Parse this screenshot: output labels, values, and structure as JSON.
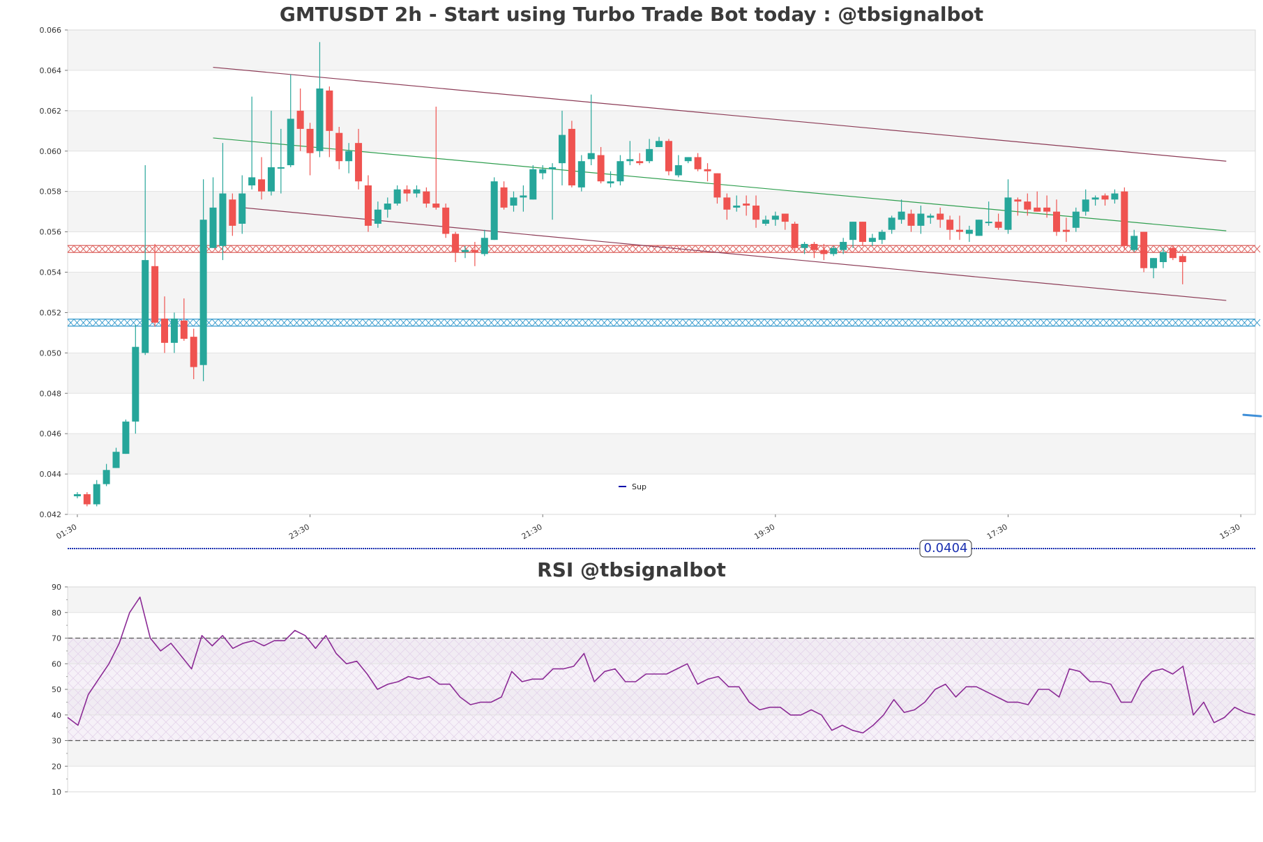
{
  "chart_data": [
    {
      "type": "candlestick",
      "title": "GMTUSDT 2h - Start using Turbo Trade Bot today : @tbsignalbot",
      "ylim": [
        0.042,
        0.066
      ],
      "y_ticks": [
        "0.042",
        "0.044",
        "0.046",
        "0.048",
        "0.050",
        "0.052",
        "0.054",
        "0.056",
        "0.058",
        "0.060",
        "0.062",
        "0.064",
        "0.066"
      ],
      "x_ticks": [
        "01:30",
        "23:30",
        "21:30",
        "19:30",
        "17:30",
        "15:30"
      ],
      "x_tick_positions": [
        0,
        24,
        48,
        72,
        96,
        120
      ],
      "x_range": [
        -1,
        121.5
      ],
      "grid": "horizontal bands",
      "legend": {
        "location": "bottom-center",
        "entries": [
          {
            "label": "Sup",
            "color": "#0000aa"
          }
        ]
      },
      "colors": {
        "up": "#26a69a",
        "down": "#ef5350"
      },
      "candles": [
        [
          0.0429,
          0.0431,
          0.0428,
          0.043
        ],
        [
          0.043,
          0.0431,
          0.0424,
          0.0425
        ],
        [
          0.0425,
          0.0437,
          0.0424,
          0.0435
        ],
        [
          0.0435,
          0.0445,
          0.0434,
          0.0442
        ],
        [
          0.0443,
          0.0453,
          0.0443,
          0.0451
        ],
        [
          0.045,
          0.0467,
          0.045,
          0.0466
        ],
        [
          0.0466,
          0.0514,
          0.046,
          0.0503
        ],
        [
          0.05,
          0.0593,
          0.0499,
          0.0546
        ],
        [
          0.0543,
          0.0554,
          0.0513,
          0.0515
        ],
        [
          0.0517,
          0.0528,
          0.05,
          0.0505
        ],
        [
          0.0505,
          0.052,
          0.05,
          0.0517
        ],
        [
          0.0516,
          0.0527,
          0.0506,
          0.0507
        ],
        [
          0.0508,
          0.0512,
          0.0487,
          0.0493
        ],
        [
          0.0494,
          0.0586,
          0.0486,
          0.0566
        ],
        [
          0.0552,
          0.0587,
          0.0552,
          0.0572
        ],
        [
          0.0553,
          0.0604,
          0.0546,
          0.0579
        ],
        [
          0.0576,
          0.0579,
          0.0558,
          0.0563
        ],
        [
          0.0564,
          0.0588,
          0.0559,
          0.0579
        ],
        [
          0.0583,
          0.0627,
          0.0581,
          0.0587
        ],
        [
          0.0586,
          0.0597,
          0.0576,
          0.058
        ],
        [
          0.058,
          0.062,
          0.0578,
          0.0592
        ],
        [
          0.0592,
          0.0611,
          0.0579,
          0.0592
        ],
        [
          0.0593,
          0.0638,
          0.0592,
          0.0616
        ],
        [
          0.062,
          0.0631,
          0.06,
          0.0611
        ],
        [
          0.0611,
          0.0614,
          0.0588,
          0.0599
        ],
        [
          0.06,
          0.0654,
          0.0597,
          0.0631
        ],
        [
          0.063,
          0.0632,
          0.0597,
          0.061
        ],
        [
          0.0609,
          0.0612,
          0.0591,
          0.0595
        ],
        [
          0.0595,
          0.0604,
          0.0589,
          0.06
        ],
        [
          0.0604,
          0.0611,
          0.0581,
          0.0585
        ],
        [
          0.0583,
          0.0588,
          0.056,
          0.0563
        ],
        [
          0.0564,
          0.0575,
          0.0562,
          0.0571
        ],
        [
          0.0571,
          0.0577,
          0.0567,
          0.0574
        ],
        [
          0.0574,
          0.0583,
          0.0573,
          0.0581
        ],
        [
          0.0581,
          0.0583,
          0.0575,
          0.0579
        ],
        [
          0.0579,
          0.0583,
          0.0577,
          0.0581
        ],
        [
          0.058,
          0.0582,
          0.0572,
          0.0574
        ],
        [
          0.0574,
          0.0622,
          0.0571,
          0.0572
        ],
        [
          0.0572,
          0.0574,
          0.0557,
          0.0559
        ],
        [
          0.0559,
          0.056,
          0.0545,
          0.055
        ],
        [
          0.055,
          0.0553,
          0.0547,
          0.0551
        ],
        [
          0.0551,
          0.0555,
          0.0543,
          0.055
        ],
        [
          0.0549,
          0.0561,
          0.0548,
          0.0557
        ],
        [
          0.0556,
          0.0587,
          0.0556,
          0.0585
        ],
        [
          0.0582,
          0.0585,
          0.0571,
          0.0572
        ],
        [
          0.0573,
          0.058,
          0.057,
          0.0577
        ],
        [
          0.0577,
          0.0583,
          0.057,
          0.0578
        ],
        [
          0.0576,
          0.0593,
          0.0576,
          0.0591
        ],
        [
          0.0589,
          0.0593,
          0.0586,
          0.0591
        ],
        [
          0.0591,
          0.0594,
          0.0566,
          0.0592
        ],
        [
          0.0594,
          0.062,
          0.0583,
          0.0608
        ],
        [
          0.0611,
          0.0615,
          0.0582,
          0.0583
        ],
        [
          0.0582,
          0.0598,
          0.058,
          0.0595
        ],
        [
          0.0596,
          0.0628,
          0.0593,
          0.0599
        ],
        [
          0.0598,
          0.0602,
          0.0584,
          0.0585
        ],
        [
          0.0584,
          0.059,
          0.0582,
          0.0585
        ],
        [
          0.0585,
          0.0598,
          0.0583,
          0.0595
        ],
        [
          0.0595,
          0.0605,
          0.0593,
          0.0596
        ],
        [
          0.0595,
          0.0599,
          0.0593,
          0.0594
        ],
        [
          0.0595,
          0.0606,
          0.0594,
          0.0601
        ],
        [
          0.0602,
          0.0607,
          0.0602,
          0.0605
        ],
        [
          0.0605,
          0.0606,
          0.0588,
          0.059
        ],
        [
          0.0588,
          0.0598,
          0.0587,
          0.0593
        ],
        [
          0.0595,
          0.0597,
          0.0594,
          0.0597
        ],
        [
          0.0597,
          0.0599,
          0.059,
          0.0591
        ],
        [
          0.0591,
          0.0594,
          0.0585,
          0.059
        ],
        [
          0.0589,
          0.0589,
          0.0574,
          0.0577
        ],
        [
          0.0577,
          0.0579,
          0.0566,
          0.0571
        ],
        [
          0.0572,
          0.0578,
          0.057,
          0.0573
        ],
        [
          0.0574,
          0.0578,
          0.0568,
          0.0573
        ],
        [
          0.0573,
          0.0578,
          0.0562,
          0.0566
        ],
        [
          0.0564,
          0.0568,
          0.0563,
          0.0566
        ],
        [
          0.0566,
          0.057,
          0.0563,
          0.0568
        ],
        [
          0.0569,
          0.0569,
          0.0561,
          0.0565
        ],
        [
          0.0564,
          0.0565,
          0.055,
          0.0552
        ],
        [
          0.0552,
          0.0555,
          0.0549,
          0.0554
        ],
        [
          0.0554,
          0.0555,
          0.0547,
          0.0551
        ],
        [
          0.0551,
          0.0554,
          0.0546,
          0.0549
        ],
        [
          0.0549,
          0.0553,
          0.0548,
          0.0552
        ],
        [
          0.0551,
          0.0557,
          0.0549,
          0.0555
        ],
        [
          0.0556,
          0.0565,
          0.0552,
          0.0565
        ],
        [
          0.0565,
          0.0565,
          0.0553,
          0.0555
        ],
        [
          0.0555,
          0.0559,
          0.0553,
          0.0557
        ],
        [
          0.0556,
          0.0561,
          0.0554,
          0.056
        ],
        [
          0.0561,
          0.0568,
          0.0559,
          0.0567
        ],
        [
          0.0566,
          0.0576,
          0.0564,
          0.057
        ],
        [
          0.0569,
          0.0571,
          0.056,
          0.0563
        ],
        [
          0.0563,
          0.0573,
          0.0559,
          0.0569
        ],
        [
          0.0567,
          0.0569,
          0.0564,
          0.0568
        ],
        [
          0.0569,
          0.0572,
          0.0562,
          0.0566
        ],
        [
          0.0566,
          0.0568,
          0.0556,
          0.0561
        ],
        [
          0.0561,
          0.0568,
          0.0556,
          0.056
        ],
        [
          0.0559,
          0.0563,
          0.0555,
          0.0561
        ],
        [
          0.0558,
          0.0566,
          0.0558,
          0.0566
        ],
        [
          0.0565,
          0.0575,
          0.0563,
          0.0565
        ],
        [
          0.0565,
          0.0569,
          0.0561,
          0.0562
        ],
        [
          0.0561,
          0.0586,
          0.0559,
          0.0577
        ],
        [
          0.0576,
          0.0577,
          0.0568,
          0.0575
        ],
        [
          0.0575,
          0.0579,
          0.0568,
          0.0571
        ],
        [
          0.0572,
          0.058,
          0.057,
          0.057
        ],
        [
          0.0572,
          0.0578,
          0.0567,
          0.057
        ],
        [
          0.057,
          0.0576,
          0.0558,
          0.056
        ],
        [
          0.0561,
          0.0567,
          0.0555,
          0.056
        ],
        [
          0.0562,
          0.0572,
          0.056,
          0.057
        ],
        [
          0.057,
          0.0581,
          0.0568,
          0.0576
        ],
        [
          0.0576,
          0.0578,
          0.0573,
          0.0577
        ],
        [
          0.0578,
          0.0579,
          0.0573,
          0.0576
        ],
        [
          0.0576,
          0.0581,
          0.0574,
          0.0579
        ],
        [
          0.058,
          0.0582,
          0.0551,
          0.0553
        ],
        [
          0.0551,
          0.0561,
          0.055,
          0.0558
        ],
        [
          0.056,
          0.056,
          0.054,
          0.0542
        ],
        [
          0.0542,
          0.0547,
          0.0537,
          0.0547
        ],
        [
          0.0545,
          0.0552,
          0.0542,
          0.055
        ],
        [
          0.0552,
          0.0553,
          0.0546,
          0.0547
        ],
        [
          0.0548,
          0.0549,
          0.0534,
          0.0545
        ]
      ],
      "trend_lines": [
        {
          "from": [
            14,
            0.06415
          ],
          "to": [
            118.5,
            0.0595
          ],
          "color": "#8b3a55"
        },
        {
          "from": [
            14,
            0.06065
          ],
          "to": [
            118.5,
            0.05605
          ],
          "color": "#2e9e4e"
        },
        {
          "from": [
            17,
            0.0572
          ],
          "to": [
            118.5,
            0.0526
          ],
          "color": "#8b3a55"
        }
      ],
      "zones": [
        {
          "value": 0.05515,
          "color": "#d9534f"
        },
        {
          "value": 0.0515,
          "color": "#3399cc"
        }
      ],
      "marker": {
        "value": 0.0469,
        "color": "#3f8fd8"
      }
    },
    {
      "type": "line",
      "title": "RSI @tbsignalbot",
      "ylim": [
        10,
        90
      ],
      "y_ticks": [
        10,
        20,
        30,
        40,
        50,
        60,
        70,
        80,
        90
      ],
      "reference_lines": [
        30,
        70
      ],
      "line_color": "#8b2a95",
      "values": [
        39,
        36,
        48,
        54,
        60,
        68,
        80,
        86,
        70,
        65,
        68,
        63,
        58,
        71,
        67,
        71,
        66,
        68,
        69,
        67,
        69,
        69,
        73,
        71,
        66,
        71,
        64,
        60,
        61,
        56,
        50,
        52,
        53,
        55,
        54,
        55,
        52,
        52,
        47,
        44,
        45,
        45,
        47,
        57,
        53,
        54,
        54,
        58,
        58,
        59,
        64,
        53,
        57,
        58,
        53,
        53,
        56,
        56,
        56,
        58,
        60,
        52,
        54,
        55,
        51,
        51,
        45,
        42,
        43,
        43,
        40,
        40,
        42,
        40,
        34,
        36,
        34,
        33,
        36,
        40,
        46,
        41,
        42,
        45,
        50,
        52,
        47,
        51,
        51,
        49,
        47,
        45,
        45,
        44,
        50,
        50,
        47,
        58,
        57,
        53,
        53,
        52,
        45,
        45,
        53,
        57,
        58,
        56,
        59,
        40,
        45,
        37,
        39,
        43,
        41,
        40
      ]
    }
  ],
  "separator": {
    "label": "0.0404"
  }
}
